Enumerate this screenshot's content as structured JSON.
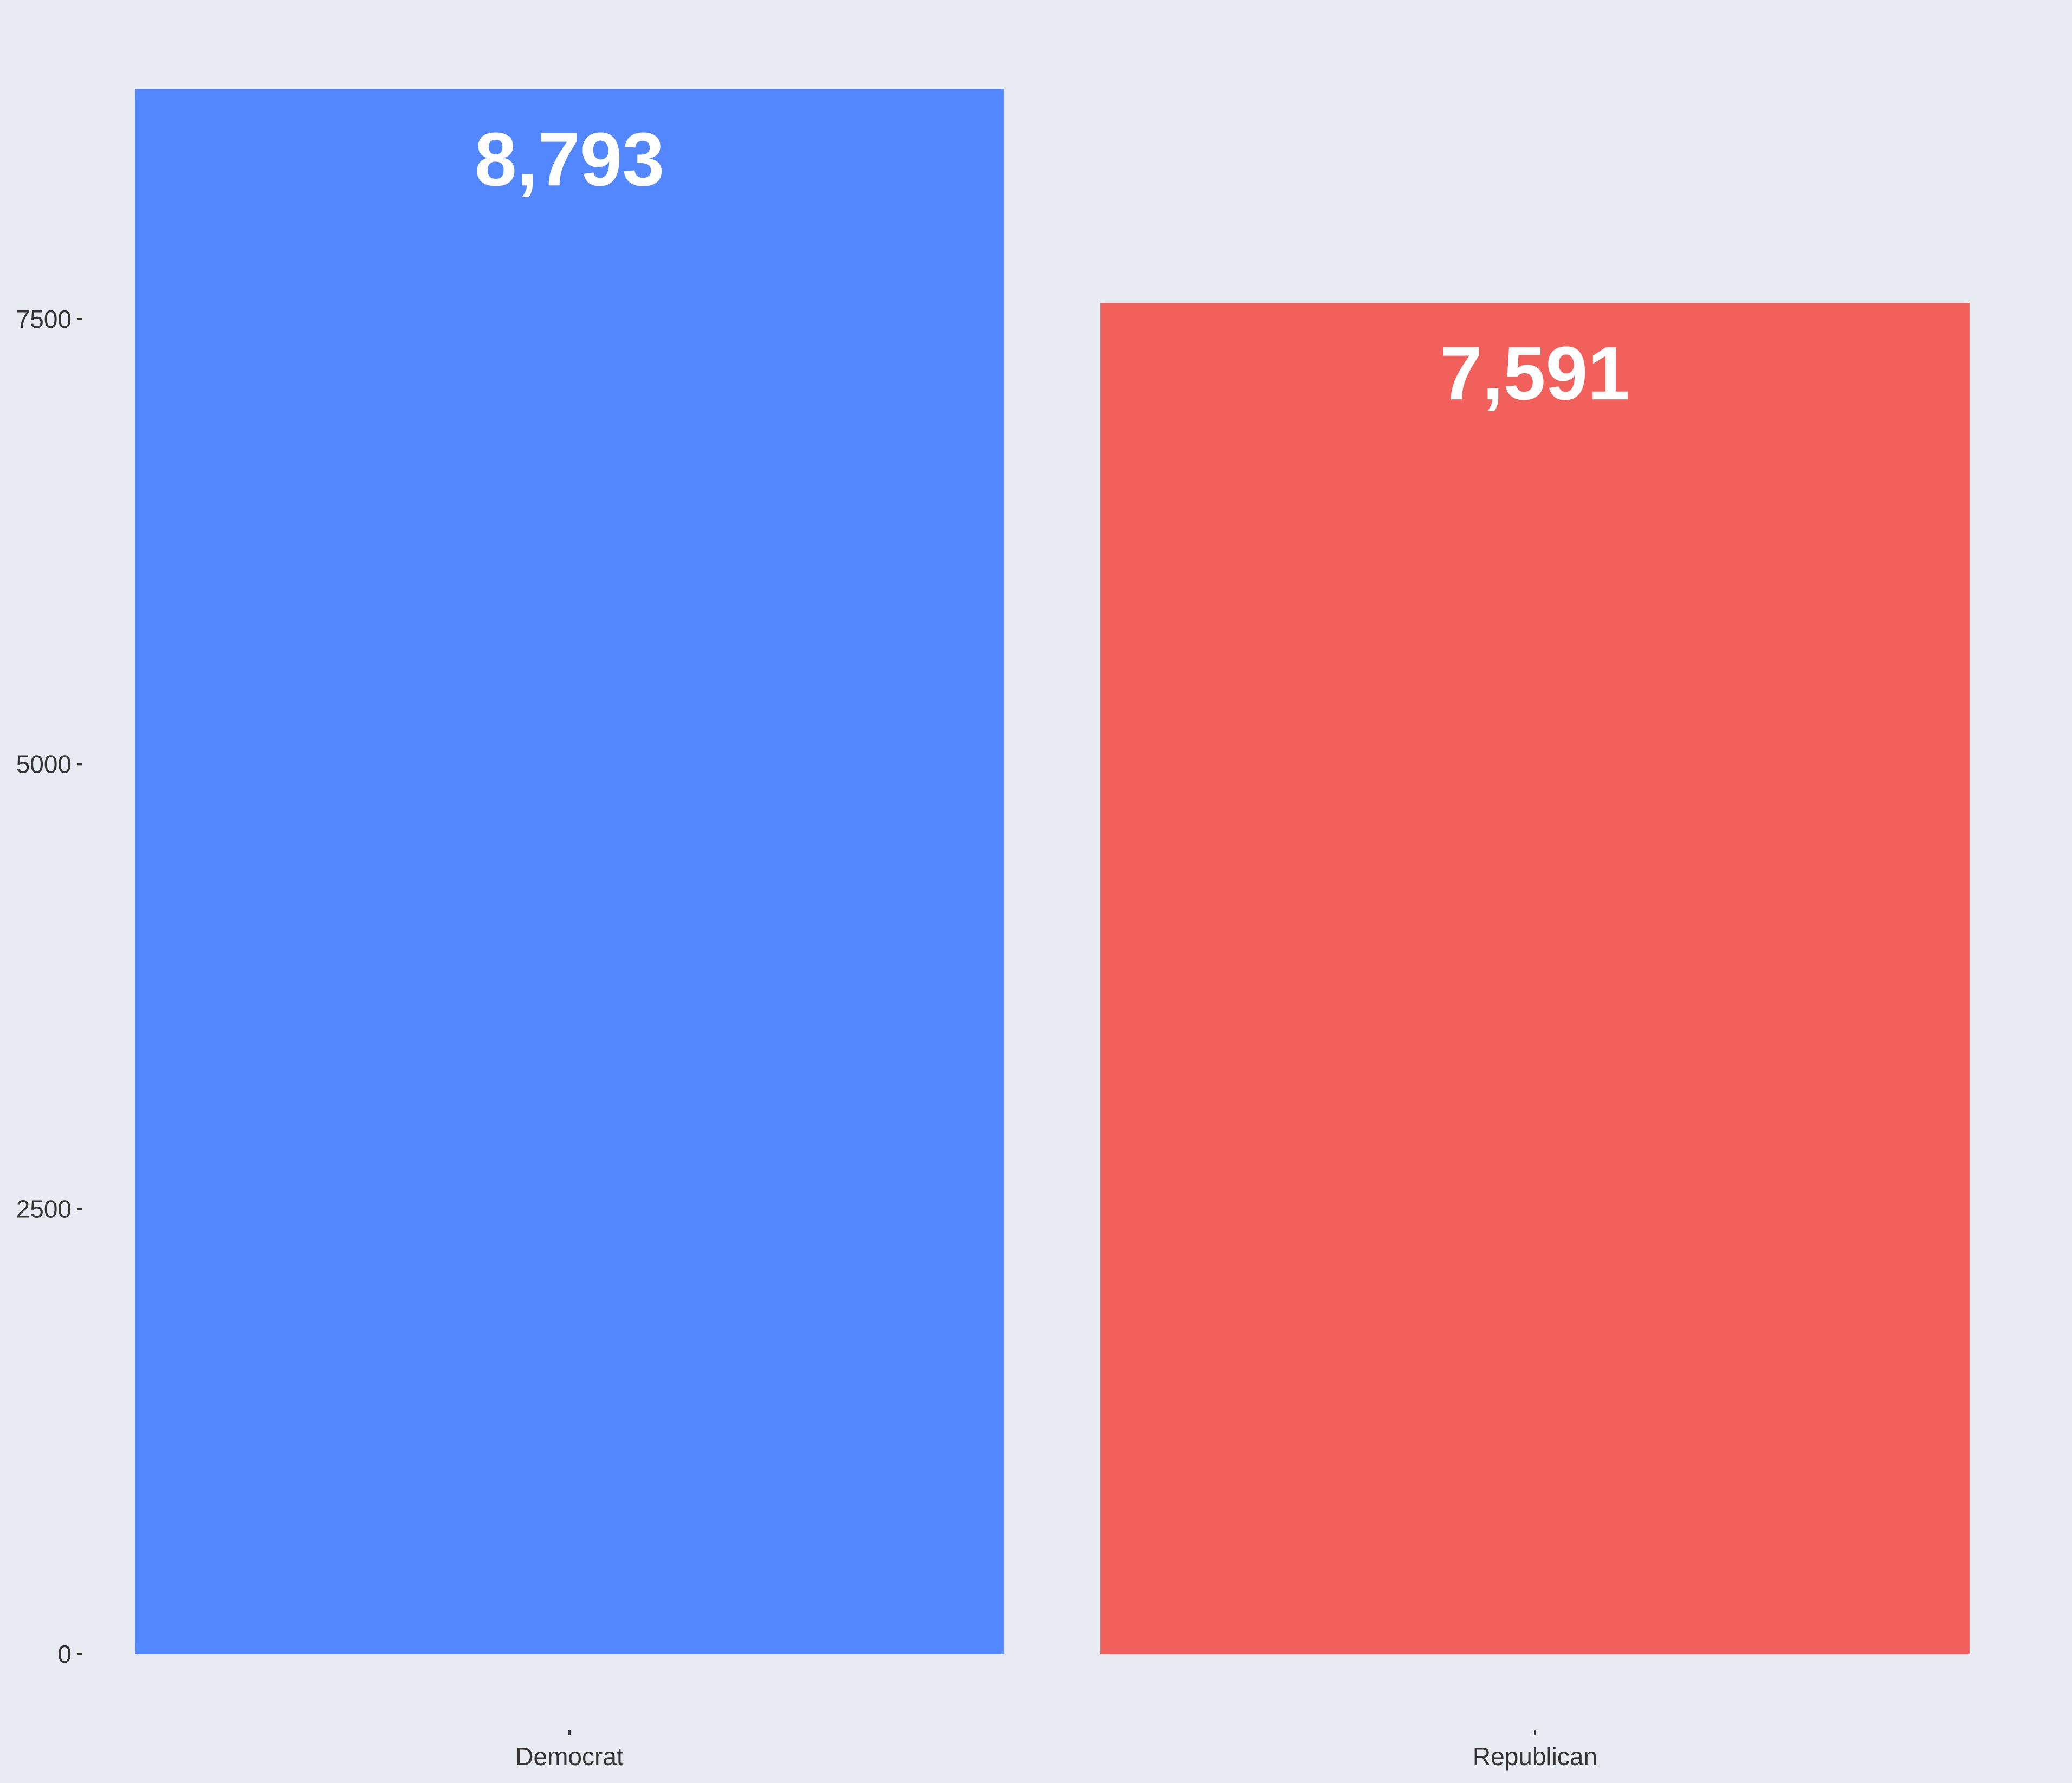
{
  "chart_data": {
    "type": "bar",
    "title": "",
    "xlabel": "",
    "ylabel": "",
    "categories": [
      "Democrat",
      "Republican"
    ],
    "values": [
      8793,
      7591
    ],
    "value_labels": [
      "8,793",
      "7,591"
    ],
    "colors": [
      "#5387ff",
      "#f2605c"
    ],
    "y_ticks": [
      0,
      2500,
      5000,
      7500
    ],
    "y_tick_labels": [
      "0",
      "2500",
      "5000",
      "7500"
    ],
    "ylim": [
      0,
      9000
    ],
    "grid": false,
    "legend": "none",
    "background_color": "#e8ecf2",
    "label_color": "#ffffff"
  }
}
